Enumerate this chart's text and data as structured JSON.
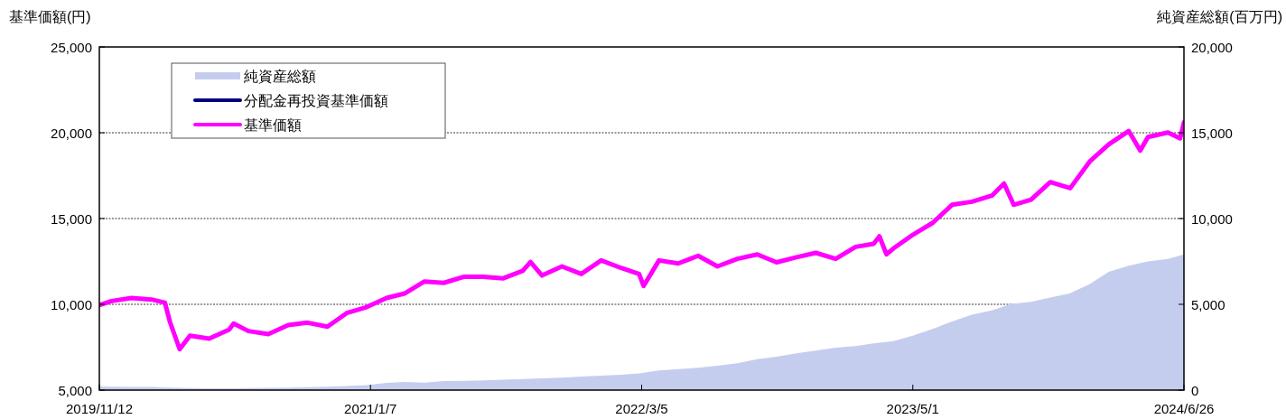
{
  "chart_data": {
    "type": "line",
    "ylabel": "基準価額(円)",
    "y2label": "純資産総額(百万円)",
    "xlim": [
      "2019-11-12",
      "2024-06-26"
    ],
    "xticks": [
      {
        "value": "2019-11-12",
        "label": "2019/11/12"
      },
      {
        "value": "2021-01-07",
        "label": "2021/1/7"
      },
      {
        "value": "2022-03-05",
        "label": "2022/3/5"
      },
      {
        "value": "2023-05-01",
        "label": "2023/5/1"
      },
      {
        "value": "2024-06-26",
        "label": "2024/6/26"
      }
    ],
    "ylim": [
      5000,
      25000
    ],
    "yticks": [
      {
        "value": 5000,
        "label": "5,000"
      },
      {
        "value": 10000,
        "label": "10,000"
      },
      {
        "value": 15000,
        "label": "15,000"
      },
      {
        "value": 20000,
        "label": "20,000"
      },
      {
        "value": 25000,
        "label": "25,000"
      }
    ],
    "y2lim": [
      0,
      20000
    ],
    "y2ticks": [
      0,
      {
        "value": 5000,
        "label": "5,000"
      },
      {
        "value": 10000,
        "label": "10,000"
      },
      {
        "value": 15000,
        "label": "15,000"
      },
      {
        "value": 20000,
        "label": "20,000"
      }
    ],
    "grid": "y",
    "legend": "top left",
    "series": [
      {
        "name": "純資産総額",
        "type": "area",
        "axis": "y2",
        "color": "#c5cdef",
        "x": [
          "2019-11-12",
          "2019-12-01",
          "2020-01-01",
          "2020-02-01",
          "2020-03-01",
          "2020-04-01",
          "2020-05-01",
          "2020-06-01",
          "2020-07-01",
          "2020-08-01",
          "2020-09-01",
          "2020-10-01",
          "2020-11-01",
          "2020-12-01",
          "2021-01-01",
          "2021-02-01",
          "2021-03-01",
          "2021-04-01",
          "2021-05-01",
          "2021-06-01",
          "2021-07-01",
          "2021-08-01",
          "2021-09-01",
          "2021-10-01",
          "2021-11-01",
          "2021-12-01",
          "2022-01-01",
          "2022-02-01",
          "2022-03-01",
          "2022-04-01",
          "2022-05-01",
          "2022-06-01",
          "2022-07-01",
          "2022-08-01",
          "2022-09-01",
          "2022-10-01",
          "2022-11-01",
          "2022-12-01",
          "2023-01-01",
          "2023-02-01",
          "2023-03-01",
          "2023-04-01",
          "2023-05-01",
          "2023-06-01",
          "2023-07-01",
          "2023-08-01",
          "2023-09-01",
          "2023-10-01",
          "2023-11-01",
          "2023-12-01",
          "2024-01-01",
          "2024-02-01",
          "2024-03-01",
          "2024-04-01",
          "2024-05-01",
          "2024-06-01",
          "2024-06-26"
        ],
        "values": [
          210,
          200,
          190,
          180,
          150,
          120,
          110,
          110,
          120,
          130,
          150,
          170,
          200,
          240,
          290,
          420,
          470,
          430,
          520,
          540,
          560,
          600,
          640,
          680,
          730,
          790,
          840,
          900,
          980,
          1150,
          1220,
          1300,
          1420,
          1560,
          1800,
          1950,
          2150,
          2300,
          2480,
          2560,
          2720,
          2850,
          3170,
          3560,
          4000,
          4400,
          4650,
          5020,
          5150,
          5400,
          5650,
          6200,
          6900,
          7250,
          7500,
          7650,
          7910
        ]
      },
      {
        "name": "分配金再投資基準価額",
        "color": "#000080",
        "values": [
          null,
          null,
          null,
          null,
          null,
          null,
          null,
          null,
          null,
          null
        ]
      },
      {
        "name": "基準価額",
        "color": "#ff00ff",
        "x": [
          "2019-11-12",
          "2019-12-01",
          "2020-01-01",
          "2020-02-01",
          "2020-02-22",
          "2020-03-01",
          "2020-03-16",
          "2020-04-01",
          "2020-05-01",
          "2020-06-01",
          "2020-06-08",
          "2020-07-01",
          "2020-08-01",
          "2020-09-01",
          "2020-10-01",
          "2020-11-01",
          "2020-12-01",
          "2021-01-01",
          "2021-02-01",
          "2021-03-01",
          "2021-04-01",
          "2021-05-01",
          "2021-06-01",
          "2021-07-01",
          "2021-08-01",
          "2021-09-01",
          "2021-09-13",
          "2021-10-01",
          "2021-11-01",
          "2021-12-01",
          "2022-01-01",
          "2022-02-01",
          "2022-03-01",
          "2022-03-08",
          "2022-04-01",
          "2022-05-01",
          "2022-06-01",
          "2022-07-01",
          "2022-08-01",
          "2022-09-01",
          "2022-10-01",
          "2022-11-01",
          "2022-12-01",
          "2023-01-01",
          "2023-02-01",
          "2023-03-01",
          "2023-03-10",
          "2023-03-21",
          "2023-04-01",
          "2023-05-01",
          "2023-06-01",
          "2023-07-01",
          "2023-08-01",
          "2023-09-01",
          "2023-09-20",
          "2023-10-05",
          "2023-11-01",
          "2023-12-01",
          "2024-01-01",
          "2024-02-01",
          "2024-03-01",
          "2024-04-01",
          "2024-04-19",
          "2024-05-01",
          "2024-06-01",
          "2024-06-20",
          "2024-06-26"
        ],
        "values": [
          9950,
          10190,
          10370,
          10280,
          10100,
          8960,
          7380,
          8170,
          8000,
          8530,
          8880,
          8440,
          8260,
          8790,
          8930,
          8700,
          9490,
          9840,
          10370,
          10630,
          11330,
          11250,
          11600,
          11600,
          11510,
          11950,
          12470,
          11680,
          12210,
          11770,
          12560,
          12120,
          11770,
          11070,
          12560,
          12380,
          12830,
          12210,
          12650,
          12910,
          12450,
          12740,
          13000,
          12650,
          13350,
          13530,
          13960,
          12910,
          13260,
          14050,
          14750,
          15800,
          15980,
          16330,
          17040,
          15800,
          16100,
          17120,
          16770,
          18350,
          19320,
          20100,
          18960,
          19750,
          20010,
          19670,
          20600
        ]
      }
    ]
  }
}
